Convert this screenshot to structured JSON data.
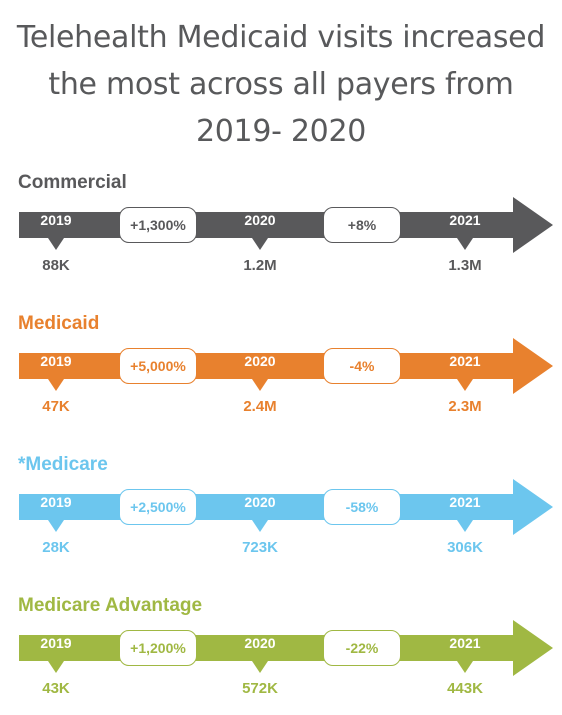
{
  "title": {
    "line1": "Telehealth Medicaid visits increased",
    "line2": "the most across all payers from",
    "line3": "2019- 2020"
  },
  "rows": [
    {
      "payer": "Commercial",
      "color": "#59595b",
      "years": [
        "2019",
        "2020",
        "2021"
      ],
      "changes": [
        "+1,300%",
        "+8%"
      ],
      "values": [
        "88K",
        "1.2M",
        "1.3M"
      ]
    },
    {
      "payer": "Medicaid",
      "color": "#e8812e",
      "years": [
        "2019",
        "2020",
        "2021"
      ],
      "changes": [
        "+5,000%",
        "-4%"
      ],
      "values": [
        "47K",
        "2.4M",
        "2.3M"
      ]
    },
    {
      "payer": "*Medicare",
      "color": "#6cc6ee",
      "years": [
        "2019",
        "2020",
        "2021"
      ],
      "changes": [
        "+2,500%",
        "-58%"
      ],
      "values": [
        "28K",
        "723K",
        "306K"
      ]
    },
    {
      "payer": "Medicare Advantage",
      "color": "#a0b843",
      "years": [
        "2019",
        "2020",
        "2021"
      ],
      "changes": [
        "+1,200%",
        "-22%"
      ],
      "values": [
        "43K",
        "572K",
        "443K"
      ]
    }
  ]
}
